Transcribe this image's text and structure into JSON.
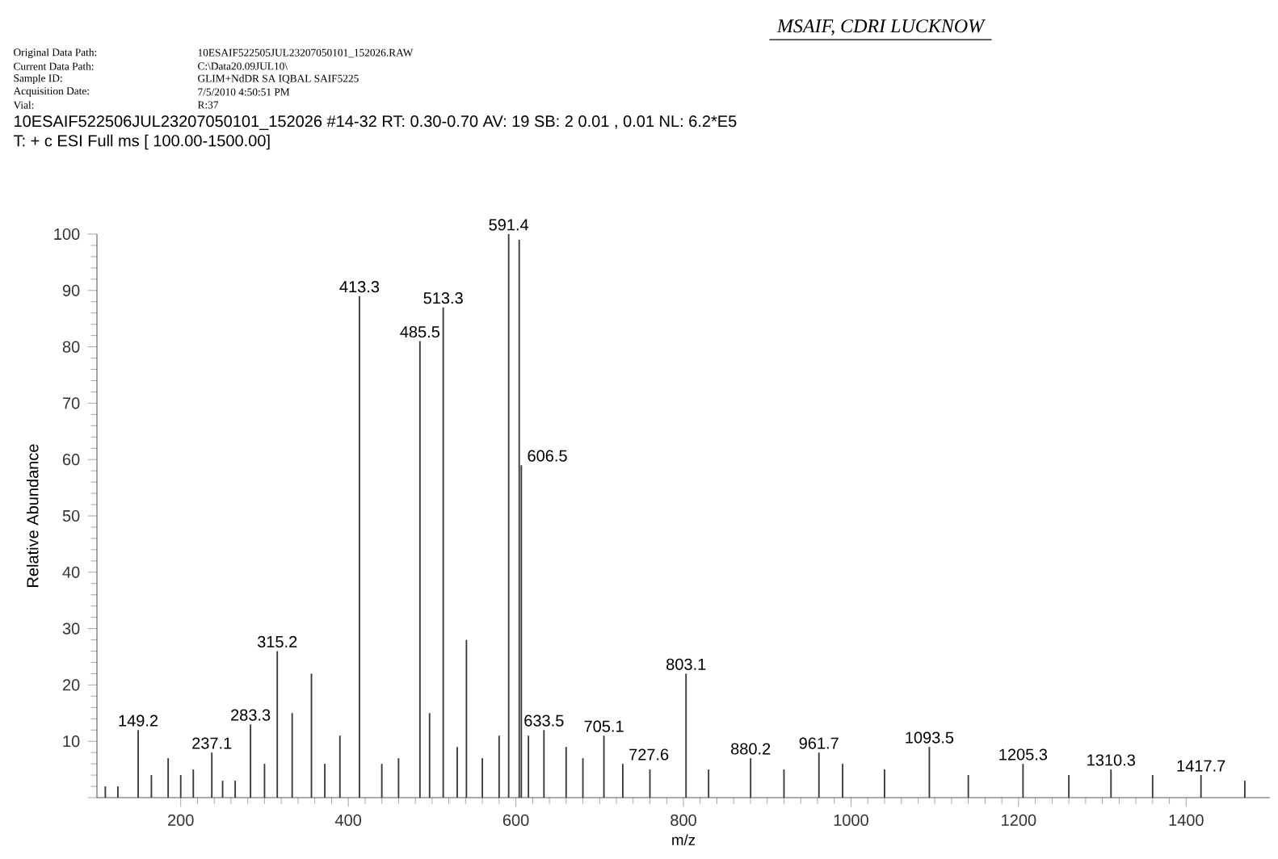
{
  "chart_data": {
    "type": "bar",
    "title": "MSAIF, CDRI LUCKNOW",
    "xlabel": "m/z",
    "ylabel": "Relative Abundance",
    "xlim": [
      100,
      1500
    ],
    "ylim": [
      0,
      100
    ],
    "xticks": [
      200,
      400,
      600,
      800,
      1000,
      1200,
      1400
    ],
    "yticks": [
      {
        "value": 0,
        "label": null
      },
      10,
      20,
      30,
      40,
      50,
      60,
      70,
      80,
      90,
      100
    ],
    "grid": false,
    "series": [
      {
        "color": "#3a3a3a",
        "x": [
          110,
          125,
          149.2,
          165,
          185,
          200,
          215,
          237.1,
          250,
          265,
          283.3,
          300,
          315.2,
          333,
          356,
          372,
          390,
          413.3,
          440,
          460,
          485.5,
          497,
          513.3,
          530,
          541,
          560,
          580,
          591.4,
          604,
          606.5,
          615,
          633.5,
          660,
          680,
          705.1,
          727.6,
          760,
          803.1,
          830,
          880.2,
          920,
          961.7,
          990,
          1040,
          1093.5,
          1140,
          1205.3,
          1260,
          1310.3,
          1360,
          1417.7,
          1470
        ],
        "values": [
          2,
          2,
          12,
          4,
          7,
          4,
          5,
          8,
          3,
          3,
          13,
          6,
          26,
          15,
          22,
          6,
          11,
          89,
          6,
          7,
          81,
          15,
          87,
          9,
          28,
          7,
          11,
          100,
          99,
          59,
          11,
          12,
          9,
          7,
          11,
          6,
          5,
          22,
          5,
          7,
          5,
          8,
          6,
          5,
          9,
          4,
          6,
          4,
          5,
          4,
          4,
          3
        ]
      }
    ],
    "annotations": [
      "Original Data Path:",
      "10ESAIF522505JUL23207050101_152026.RAW",
      "Current Data Path:",
      "C:\\Data20.09JUL10\\",
      "Sample ID:",
      "GLIM+NdDR SA IQBAL SAIF5225",
      "Acquisition Date:",
      "7/5/2010 4:50:51 PM",
      "Vial:",
      "R:37",
      "10ESAIF522506JUL23207050101_152026 #14-32   RT: 0.30-0.70   AV: 19   SB: 2 0.01 , 0.01   NL: 6.2*E5",
      "T: + c ESI Full ms [ 100.00-1500.00]",
      {
        "text": "149.2",
        "x": 149.2,
        "y": 12
      },
      {
        "text": "237.1",
        "x": 237.1,
        "y": 8
      },
      {
        "text": "283.3",
        "x": 283.3,
        "y": 13
      },
      {
        "text": "315.2",
        "x": 315.2,
        "y": 26
      },
      {
        "text": "413.3",
        "x": 413.3,
        "y": 89
      },
      {
        "text": "485.5",
        "x": 485.5,
        "y": 81
      },
      {
        "text": "513.3",
        "x": 513.3,
        "y": 87
      },
      {
        "text": "591.4",
        "x": 591.4,
        "y": 100
      },
      {
        "text": "606.5",
        "x": 606.5,
        "y": 59
      },
      {
        "text": "633.5",
        "x": 633.5,
        "y": 12
      },
      {
        "text": "705.1",
        "x": 705.1,
        "y": 11
      },
      {
        "text": "727.6",
        "x": 727.6,
        "y": 6
      },
      {
        "text": "803.1",
        "x": 803.1,
        "y": 22
      },
      {
        "text": "880.2",
        "x": 880.2,
        "y": 7
      },
      {
        "text": "961.7",
        "x": 961.7,
        "y": 8
      },
      {
        "text": "1093.5",
        "x": 1093.5,
        "y": 9
      },
      {
        "text": "1205.3",
        "x": 1205.3,
        "y": 6
      },
      {
        "text": "1310.3",
        "x": 1310.3,
        "y": 5
      },
      {
        "text": "1417.7",
        "x": 1417.7,
        "y": 4
      }
    ]
  }
}
